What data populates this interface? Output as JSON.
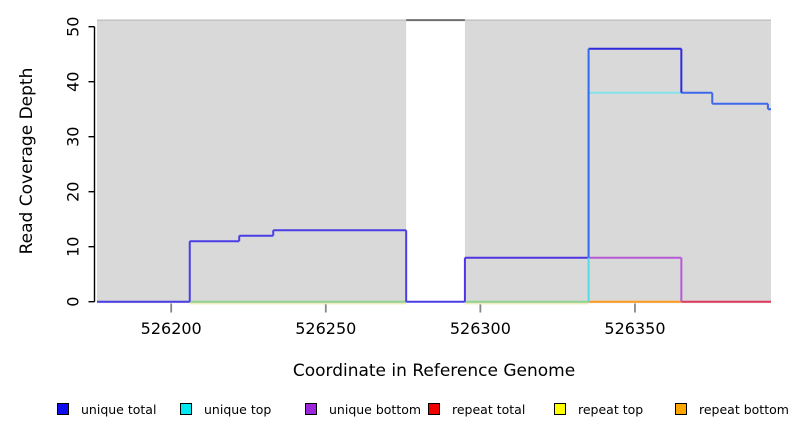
{
  "chart_data": {
    "type": "line",
    "subtype": "step-coverage",
    "title": "",
    "xlabel": "Coordinate in Reference Genome",
    "ylabel": "Read Coverage Depth",
    "xlim": [
      526176,
      526394
    ],
    "ylim": [
      0,
      51.5
    ],
    "x_ticks": [
      526200,
      526250,
      526300,
      526350
    ],
    "y_ticks": [
      0,
      10,
      20,
      30,
      40,
      50
    ],
    "grid": false,
    "figure_bg": "#ffffff",
    "region_color": "#d9d9d9",
    "region_border_color": "#bdbdbd",
    "covered_regions": [
      {
        "x1": 526176,
        "x2": 526276
      },
      {
        "x1": 526295,
        "x2": 526394
      }
    ],
    "gap_region": {
      "x1": 526276,
      "x2": 526295,
      "note": "white band; coverage line clipped above y-axis maximum"
    },
    "offscale_peak": {
      "x1": 526276,
      "x2": 526295,
      "y": 51.2,
      "color": "#6f6f6f"
    },
    "series": [
      {
        "name": "unique total",
        "legend_color": "#0d0df0",
        "steps": [
          [
            526176,
            0
          ],
          [
            526206,
            11
          ],
          [
            526222,
            12
          ],
          [
            526233,
            13
          ],
          [
            526276,
            0
          ],
          [
            526295,
            8
          ],
          [
            526335,
            46
          ],
          [
            526365,
            38
          ],
          [
            526375,
            36
          ],
          [
            526393,
            35
          ]
        ],
        "end": 526394
      },
      {
        "name": "unique top",
        "legend_color": "#00e8f0",
        "steps": [
          [
            526176,
            0
          ],
          [
            526335,
            38
          ],
          [
            526375,
            36
          ],
          [
            526393,
            35
          ]
        ],
        "end": 526394
      },
      {
        "name": "unique bottom",
        "legend_color": "#9b26dc",
        "steps": [
          [
            526176,
            0
          ],
          [
            526295,
            8
          ],
          [
            526365,
            0
          ]
        ],
        "end": 526394
      },
      {
        "name": "repeat total",
        "legend_color": "#f20000",
        "steps": [
          [
            526176,
            0
          ]
        ],
        "end": 526394
      },
      {
        "name": "repeat top",
        "legend_color": "#ffff00",
        "steps": [
          [
            526176,
            0
          ]
        ],
        "end": 526394
      },
      {
        "name": "repeat bottom",
        "legend_color": "#ffa500",
        "steps": [
          [
            526176,
            0
          ]
        ],
        "end": 526394
      }
    ],
    "render_segments": {
      "horizontal": [
        {
          "x1": 526176,
          "x2": 526206,
          "y": 0,
          "color": "#4b3de6",
          "w": 2
        },
        {
          "x1": 526206,
          "x2": 526276,
          "y": -0.35,
          "color": "#f1eabc",
          "w": 1.5
        },
        {
          "x1": 526206,
          "x2": 526276,
          "y": 0,
          "color": "#8fd48f",
          "w": 2
        },
        {
          "x1": 526276,
          "x2": 526295,
          "y": 0,
          "color": "#4b3de6",
          "w": 2
        },
        {
          "x1": 526295,
          "x2": 526335,
          "y": -0.35,
          "color": "#f1eabc",
          "w": 1.5
        },
        {
          "x1": 526295,
          "x2": 526335,
          "y": 0,
          "color": "#8fd48f",
          "w": 2
        },
        {
          "x1": 526335,
          "x2": 526365,
          "y": 0,
          "color": "#ff9a1e",
          "w": 2
        },
        {
          "x1": 526365,
          "x2": 526394,
          "y": 0,
          "color": "#e03a5e",
          "w": 2
        },
        {
          "x1": 526206,
          "x2": 526222,
          "y": 11,
          "color": "#4b3de6",
          "w": 2
        },
        {
          "x1": 526222,
          "x2": 526233,
          "y": 12,
          "color": "#4b3de6",
          "w": 2
        },
        {
          "x1": 526233,
          "x2": 526276,
          "y": 13,
          "color": "#4b3de6",
          "w": 2
        },
        {
          "x1": 526295,
          "x2": 526335,
          "y": 8,
          "color": "#4f35e2",
          "w": 2
        },
        {
          "x1": 526335,
          "x2": 526365,
          "y": 8,
          "color": "#b75ad8",
          "w": 2
        },
        {
          "x1": 526335,
          "x2": 526365,
          "y": 38,
          "color": "#82e3e9",
          "w": 2
        },
        {
          "x1": 526335,
          "x2": 526365,
          "y": 46,
          "color": "#2f2ade",
          "w": 2
        },
        {
          "x1": 526365,
          "x2": 526375,
          "y": 38,
          "color": "#3e68ec",
          "w": 2
        },
        {
          "x1": 526375,
          "x2": 526393,
          "y": 36,
          "color": "#3e68ec",
          "w": 2
        },
        {
          "x1": 526393,
          "x2": 526394,
          "y": 35,
          "color": "#3e68ec",
          "w": 2
        },
        {
          "x1": 526276,
          "x2": 526295,
          "y": 51.2,
          "color": "#6f6f6f",
          "w": 2
        }
      ],
      "vertical": [
        {
          "x": 526206,
          "y1": 0,
          "y2": 11,
          "color": "#4b3de6",
          "w": 2
        },
        {
          "x": 526222,
          "y1": 11,
          "y2": 12,
          "color": "#4b3de6",
          "w": 2
        },
        {
          "x": 526233,
          "y1": 12,
          "y2": 13,
          "color": "#4b3de6",
          "w": 2
        },
        {
          "x": 526276,
          "y1": 0,
          "y2": 13,
          "color": "#4b3de6",
          "w": 2
        },
        {
          "x": 526295,
          "y1": 0,
          "y2": 8,
          "color": "#4f35e2",
          "w": 2
        },
        {
          "x": 526335,
          "y1": 0,
          "y2": 38,
          "color": "#57dce6",
          "w": 2
        },
        {
          "x": 526335,
          "y1": 8,
          "y2": 46,
          "color": "#2f6cf0",
          "w": 2
        },
        {
          "x": 526365,
          "y1": 38,
          "y2": 46,
          "color": "#2f2ade",
          "w": 2
        },
        {
          "x": 526365,
          "y1": 0,
          "y2": 8,
          "color": "#b75ad8",
          "w": 2
        },
        {
          "x": 526375,
          "y1": 36,
          "y2": 38,
          "color": "#3e68ec",
          "w": 2
        },
        {
          "x": 526393,
          "y1": 35,
          "y2": 36,
          "color": "#3e68ec",
          "w": 2
        }
      ]
    }
  },
  "legend": {
    "items": [
      {
        "label": "unique total",
        "color": "#0d0df0"
      },
      {
        "label": "unique top",
        "color": "#00e8f0"
      },
      {
        "label": "unique bottom",
        "color": "#9b26dc"
      },
      {
        "label": "repeat total",
        "color": "#f20000"
      },
      {
        "label": "repeat top",
        "color": "#ffff00"
      },
      {
        "label": "repeat bottom",
        "color": "#ffa500"
      }
    ]
  }
}
